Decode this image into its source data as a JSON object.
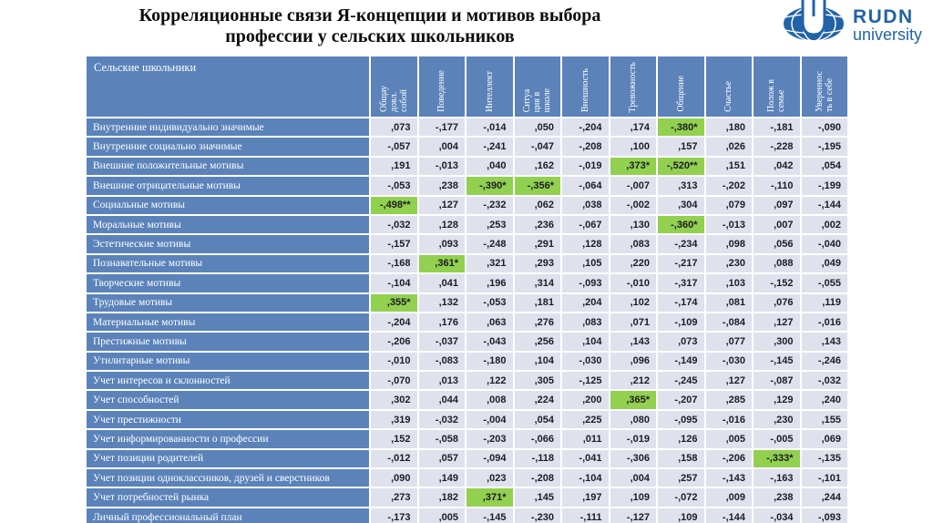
{
  "title": {
    "line1": "Корреляционные связи Я-концепции и мотивов выбора",
    "line2": "профессии у сельских школьников"
  },
  "logo": {
    "name": "RUDN",
    "subtitle": "university",
    "brand_color": "#2263a8"
  },
  "colors": {
    "header_bg": "#5b83ba",
    "cell_bg": "#dfe2ed",
    "highlight_bg": "#92d050",
    "title_color": "#0d0d0d"
  },
  "table": {
    "corner_label": "Сельские школьники",
    "columns": [
      "Общау\nдовл.\nсобой",
      "Поведение",
      "Интеллект",
      "Ситуа\nция в\nшколе",
      "Внешность",
      "Тревожность",
      "Общение",
      "Счастье",
      "Полож в\nсемье",
      "Увереннос\nть в себе"
    ],
    "rows": [
      {
        "label": "Внутренние индивидуально значимые",
        "values": [
          ",073",
          "-,177",
          "-,014",
          ",050",
          "-,204",
          ",174",
          "-,380*",
          ",180",
          "-,181",
          "-,090"
        ]
      },
      {
        "label": "Внутренние социально значимые",
        "values": [
          "-,057",
          ",004",
          "-,241",
          "-,047",
          "-,208",
          ",100",
          ",157",
          ",026",
          "-,228",
          "-,195"
        ]
      },
      {
        "label": "Внешние положительные мотивы",
        "values": [
          ",191",
          "-,013",
          ",040",
          ",162",
          "-,019",
          ",373*",
          "-,520**",
          ",151",
          ",042",
          ",054"
        ]
      },
      {
        "label": "Внешние отрицательные мотивы",
        "values": [
          "-,053",
          ",238",
          "-,390*",
          "-,356*",
          "-,064",
          "-,007",
          ",313",
          "-,202",
          "-,110",
          "-,199"
        ]
      },
      {
        "label": "Социальные мотивы",
        "values": [
          "-,498**",
          ",127",
          "-,232",
          ",062",
          ",038",
          "-,002",
          ",304",
          ",079",
          ",097",
          "-,144"
        ]
      },
      {
        "label": "Моральные мотивы",
        "values": [
          "-,032",
          ",128",
          ",253",
          ",236",
          "-,067",
          ",130",
          "-,360*",
          "-,013",
          ",007",
          ",002"
        ]
      },
      {
        "label": "Эстетические мотивы",
        "values": [
          "-,157",
          ",093",
          "-,248",
          ",291",
          ",128",
          ",083",
          "-,234",
          ",098",
          ",056",
          "-,040"
        ]
      },
      {
        "label": "Познавательные мотивы",
        "values": [
          "-,168",
          ",361*",
          ",321",
          ",293",
          ",105",
          ",220",
          "-,217",
          ",230",
          ",088",
          ",049"
        ]
      },
      {
        "label": "Творческие мотивы",
        "values": [
          "-,104",
          ",041",
          ",196",
          ",314",
          "-,093",
          "-,010",
          "-,317",
          ",103",
          "-,152",
          "-,055"
        ]
      },
      {
        "label": "Трудовые мотивы",
        "values": [
          ",355*",
          ",132",
          "-,053",
          ",181",
          ",204",
          ",102",
          "-,174",
          ",081",
          ",076",
          ",119"
        ]
      },
      {
        "label": "Материальные мотивы",
        "values": [
          "-,204",
          ",176",
          ",063",
          ",276",
          ",083",
          ",071",
          "-,109",
          "-,084",
          ",127",
          "-,016"
        ]
      },
      {
        "label": "Престижные мотивы",
        "values": [
          "-,206",
          "-,037",
          "-,043",
          ",256",
          ",104",
          ",143",
          ",073",
          ",077",
          ",300",
          ",143"
        ]
      },
      {
        "label": "Утилитарные мотивы",
        "values": [
          "-,010",
          "-,083",
          "-,180",
          ",104",
          "-,030",
          ",096",
          "-,149",
          "-,030",
          "-,145",
          "-,246"
        ]
      },
      {
        "label": "Учет интересов и склонностей",
        "values": [
          "-,070",
          ",013",
          ",122",
          ",305",
          "-,125",
          ",212",
          "-,245",
          ",127",
          "-,087",
          "-,032"
        ]
      },
      {
        "label": "Учет способностей",
        "values": [
          ",302",
          ",044",
          ",008",
          ",224",
          ",200",
          ",365*",
          "-,207",
          ",285",
          ",129",
          ",240"
        ]
      },
      {
        "label": "Учет престижности",
        "values": [
          ",319",
          "-,032",
          "-,004",
          ",054",
          ",225",
          ",080",
          "-,095",
          "-,016",
          ",230",
          ",155"
        ]
      },
      {
        "label": "Учет информированности о профессии",
        "values": [
          ",152",
          "-,058",
          "-,203",
          "-,066",
          ",011",
          "-,019",
          ",126",
          ",005",
          "-,005",
          ",069"
        ]
      },
      {
        "label": "Учет позиции родителей",
        "values": [
          "-,012",
          ",057",
          "-,094",
          "-,118",
          "-,041",
          "-,306",
          ",158",
          "-,206",
          "-,333*",
          "-,135"
        ]
      },
      {
        "label": "Учет позиции одноклассников, друзей и сверстников",
        "values": [
          ",090",
          ",149",
          ",023",
          "-,208",
          "-,104",
          ",004",
          ",257",
          "-,143",
          "-,163",
          "-,101"
        ]
      },
      {
        "label": "Учет потребностей рынка",
        "values": [
          ",273",
          ",182",
          ",371*",
          ",145",
          ",197",
          ",109",
          "-,072",
          ",009",
          ",238",
          ",244"
        ]
      },
      {
        "label": "Личный профессиональный план",
        "values": [
          "-,173",
          ",005",
          "-,145",
          "-,230",
          "-,111",
          "-,127",
          ",109",
          "-,144",
          "-,034",
          "-,093"
        ]
      }
    ]
  }
}
